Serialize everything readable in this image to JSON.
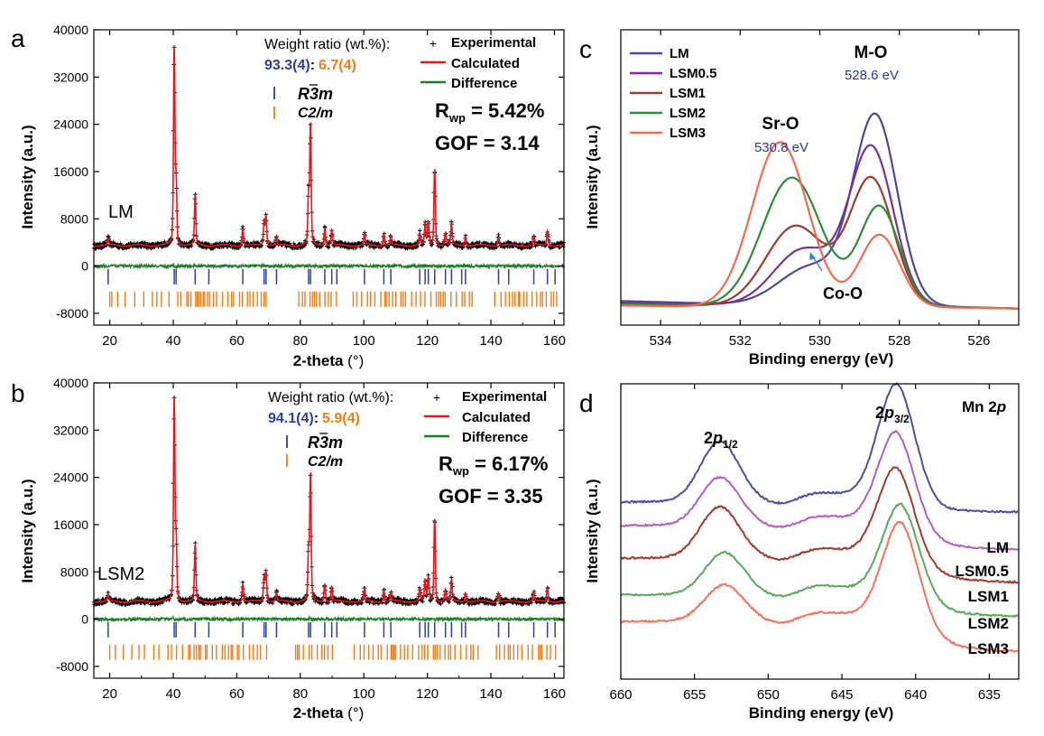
{
  "colors": {
    "axis": "#000000",
    "experimental": "#000000",
    "calculated": "#e8141c",
    "difference": "#1a7f22",
    "r3m_ticks": "#2b3fa8",
    "c2m_ticks": "#f07d18",
    "ratio_blue": "#2b3fa8",
    "ratio_orange": "#f07d18",
    "peak_label_blue": "#253b8f",
    "LM": "#4a4a9c",
    "LSM0.5": "#7b2f9b",
    "LSM1": "#9e3b2e",
    "LSM2": "#2e8b3a",
    "LSM3": "#f26b4f",
    "mn_LM": "#4d4f9e",
    "mn_LSM0.5": "#b05dc2",
    "mn_LSM1": "#a0392f",
    "mn_LSM2": "#5aa95a",
    "mn_LSM3": "#f4705a"
  },
  "panels": {
    "a": {
      "letter": "a",
      "sample_label": "LM",
      "ratio_title": "Weight ratio (wt.%):",
      "ratio_blue": "93.3(4)",
      "ratio_colon": ":",
      "ratio_orange": "6.7(4)",
      "legend": [
        "Experimental",
        "Calculated",
        "Difference"
      ],
      "phase1": "R3m",
      "phase2": "C2/m",
      "rwp_value": " = 5.42%",
      "gof": "GOF = 3.14",
      "xlabel": "2-theta",
      "xunit": "(°)",
      "ylabel": "Intensity (a.u.)"
    },
    "b": {
      "letter": "b",
      "sample_label": "LSM2",
      "ratio_title": "Weight ratio (wt.%):",
      "ratio_blue": "94.1(4)",
      "ratio_colon": ":",
      "ratio_orange": "5.9(4)",
      "legend": [
        "Experimental",
        "Calculated",
        "Difference"
      ],
      "phase1": "R3m",
      "phase2": "C2/m",
      "rwp_value": " = 6.17%",
      "gof": "GOF = 3.35",
      "xlabel": "2-theta",
      "xunit": "(°)",
      "ylabel": "Intensity (a.u.)"
    },
    "c": {
      "letter": "c",
      "xlabel": "Binding energy (eV)",
      "ylabel": "Intensity (a.u.)",
      "legend": [
        "LM",
        "LSM0.5",
        "LSM1",
        "LSM2",
        "LSM3"
      ],
      "ann_mo": "M-O",
      "ann_mo_ev": "528.6 eV",
      "ann_sro": "Sr-O",
      "ann_sro_ev": "530.8 eV",
      "ann_coo": "Co-O"
    },
    "d": {
      "letter": "d",
      "xlabel": "Binding energy  (eV)",
      "ylabel": "Intensity  (a.u.)",
      "title": "Mn 2p",
      "peak_left": "2p1/2",
      "peak_right": "2p3/2",
      "labels": [
        "LM",
        "LSM0.5",
        "LSM1",
        "LSM2",
        "LSM3"
      ]
    }
  },
  "chart_data": [
    {
      "panel": "a",
      "type": "line",
      "xlabel": "2-theta (°)",
      "ylabel": "Intensity (a.u.)",
      "xlim": [
        15,
        163
      ],
      "ylim": [
        -10000,
        40000
      ],
      "xticks": [
        20,
        40,
        60,
        80,
        100,
        120,
        140,
        160
      ],
      "yticks": [
        -8000,
        0,
        8000,
        16000,
        24000,
        32000,
        40000
      ],
      "background": 3500,
      "peaks": [
        [
          19.5,
          1000
        ],
        [
          40.3,
          33000
        ],
        [
          40.9,
          10000
        ],
        [
          46.9,
          8500
        ],
        [
          61.9,
          3000
        ],
        [
          68.6,
          4000
        ],
        [
          69.2,
          5000
        ],
        [
          72.5,
          1500
        ],
        [
          82.6,
          8000
        ],
        [
          83.2,
          20000
        ],
        [
          87.7,
          3000
        ],
        [
          89.9,
          2500
        ],
        [
          100.2,
          2000
        ],
        [
          106.3,
          2000
        ],
        [
          108.5,
          1500
        ],
        [
          117.6,
          2000
        ],
        [
          119.3,
          3500
        ],
        [
          120.3,
          4000
        ],
        [
          122.3,
          13000
        ],
        [
          125.7,
          2000
        ],
        [
          127.6,
          3500
        ],
        [
          132.0,
          1500
        ],
        [
          142.4,
          1500
        ],
        [
          153.5,
          1500
        ],
        [
          157.8,
          2500
        ]
      ],
      "difference_offset": 0,
      "r3m_positions": [
        19.5,
        40.3,
        40.9,
        46.9,
        51.2,
        61.9,
        68.6,
        69.2,
        72.5,
        82.6,
        83.2,
        87.7,
        89.9,
        91.5,
        100.2,
        106.3,
        108.5,
        117.6,
        119.3,
        120.3,
        122.3,
        125.7,
        127.6,
        130.8,
        132.0,
        142.4,
        145.6,
        153.5,
        157.8,
        160.2
      ],
      "r3m_tick_y": -1800,
      "c2m_tick_y": -5600,
      "series": [
        {
          "name": "Experimental"
        },
        {
          "name": "Calculated"
        },
        {
          "name": "Difference"
        }
      ]
    },
    {
      "panel": "b",
      "type": "line",
      "xlabel": "2-theta (°)",
      "ylabel": "Intensity (a.u.)",
      "xlim": [
        15,
        163
      ],
      "ylim": [
        -10000,
        40000
      ],
      "xticks": [
        20,
        40,
        60,
        80,
        100,
        120,
        140,
        160
      ],
      "yticks": [
        -8000,
        0,
        8000,
        16000,
        24000,
        32000,
        40000
      ],
      "background": 3000,
      "peaks": [
        [
          19.5,
          1000
        ],
        [
          40.3,
          34000
        ],
        [
          40.9,
          10000
        ],
        [
          46.9,
          9500
        ],
        [
          61.9,
          3000
        ],
        [
          68.6,
          4000
        ],
        [
          69.2,
          5000
        ],
        [
          72.5,
          1500
        ],
        [
          82.6,
          8000
        ],
        [
          83.2,
          21000
        ],
        [
          87.7,
          3000
        ],
        [
          89.9,
          2500
        ],
        [
          100.2,
          2000
        ],
        [
          106.3,
          2000
        ],
        [
          108.5,
          1500
        ],
        [
          117.6,
          2000
        ],
        [
          119.3,
          3500
        ],
        [
          120.3,
          4000
        ],
        [
          122.3,
          14000
        ],
        [
          125.7,
          2000
        ],
        [
          127.6,
          3500
        ],
        [
          132.0,
          1500
        ],
        [
          142.4,
          1500
        ],
        [
          153.5,
          1500
        ],
        [
          157.8,
          2500
        ]
      ],
      "difference_offset": 0,
      "r3m_positions": [
        19.5,
        40.3,
        40.9,
        46.9,
        51.2,
        61.9,
        68.6,
        69.2,
        72.5,
        82.6,
        83.2,
        87.7,
        89.9,
        91.5,
        100.2,
        106.3,
        108.5,
        117.6,
        119.3,
        120.3,
        122.3,
        125.7,
        127.6,
        130.8,
        132.0,
        142.4,
        145.6,
        153.5,
        157.8,
        160.2
      ],
      "r3m_tick_y": -1800,
      "c2m_tick_y": -5600,
      "series": [
        {
          "name": "Experimental"
        },
        {
          "name": "Calculated"
        },
        {
          "name": "Difference"
        }
      ]
    },
    {
      "panel": "c",
      "type": "line",
      "xlabel": "Binding energy (eV)",
      "ylabel": "Intensity (a.u.)",
      "xlim": [
        535,
        525
      ],
      "xticks": [
        534,
        532,
        530,
        528,
        526
      ],
      "series": [
        {
          "name": "LM",
          "baseline_low": 0.05,
          "baseline_high": 0.015,
          "peaks": [
            [
              528.6,
              0.62,
              0.55
            ],
            [
              530.2,
              0.13,
              0.8
            ]
          ]
        },
        {
          "name": "LSM0.5",
          "baseline_low": 0.045,
          "baseline_high": 0.015,
          "peaks": [
            [
              528.7,
              0.52,
              0.55
            ],
            [
              530.4,
              0.19,
              0.75
            ]
          ]
        },
        {
          "name": "LSM1",
          "baseline_low": 0.04,
          "baseline_high": 0.015,
          "peaks": [
            [
              528.7,
              0.42,
              0.55
            ],
            [
              530.6,
              0.27,
              0.75
            ]
          ]
        },
        {
          "name": "LSM2",
          "baseline_low": 0.04,
          "baseline_high": 0.015,
          "peaks": [
            [
              528.5,
              0.33,
              0.5
            ],
            [
              530.7,
              0.43,
              0.75
            ]
          ]
        },
        {
          "name": "LSM3",
          "baseline_low": 0.035,
          "baseline_high": 0.015,
          "peaks": [
            [
              528.5,
              0.24,
              0.5
            ],
            [
              531.0,
              0.55,
              0.7
            ]
          ]
        }
      ]
    },
    {
      "panel": "d",
      "type": "line",
      "xlabel": "Binding energy (eV)",
      "ylabel": "Intensity (a.u.)",
      "xlim": [
        660,
        633
      ],
      "xticks": [
        660,
        655,
        650,
        645,
        640,
        635
      ],
      "series": [
        {
          "name": "LM",
          "offset": 0.6,
          "height_right": 0.39,
          "height_left": 0.2,
          "tail": 0.0
        },
        {
          "name": "LSM0.5",
          "offset": 0.52,
          "height_right": 0.31,
          "height_left": 0.16,
          "tail": -0.05
        },
        {
          "name": "LSM1",
          "offset": 0.41,
          "height_right": 0.3,
          "height_left": 0.17,
          "tail": -0.05
        },
        {
          "name": "LSM2",
          "offset": 0.285,
          "height_right": 0.3,
          "height_left": 0.14,
          "tail": -0.04
        },
        {
          "name": "LSM3",
          "offset": 0.195,
          "height_right": 0.33,
          "height_left": 0.12,
          "tail": -0.07
        }
      ]
    }
  ]
}
